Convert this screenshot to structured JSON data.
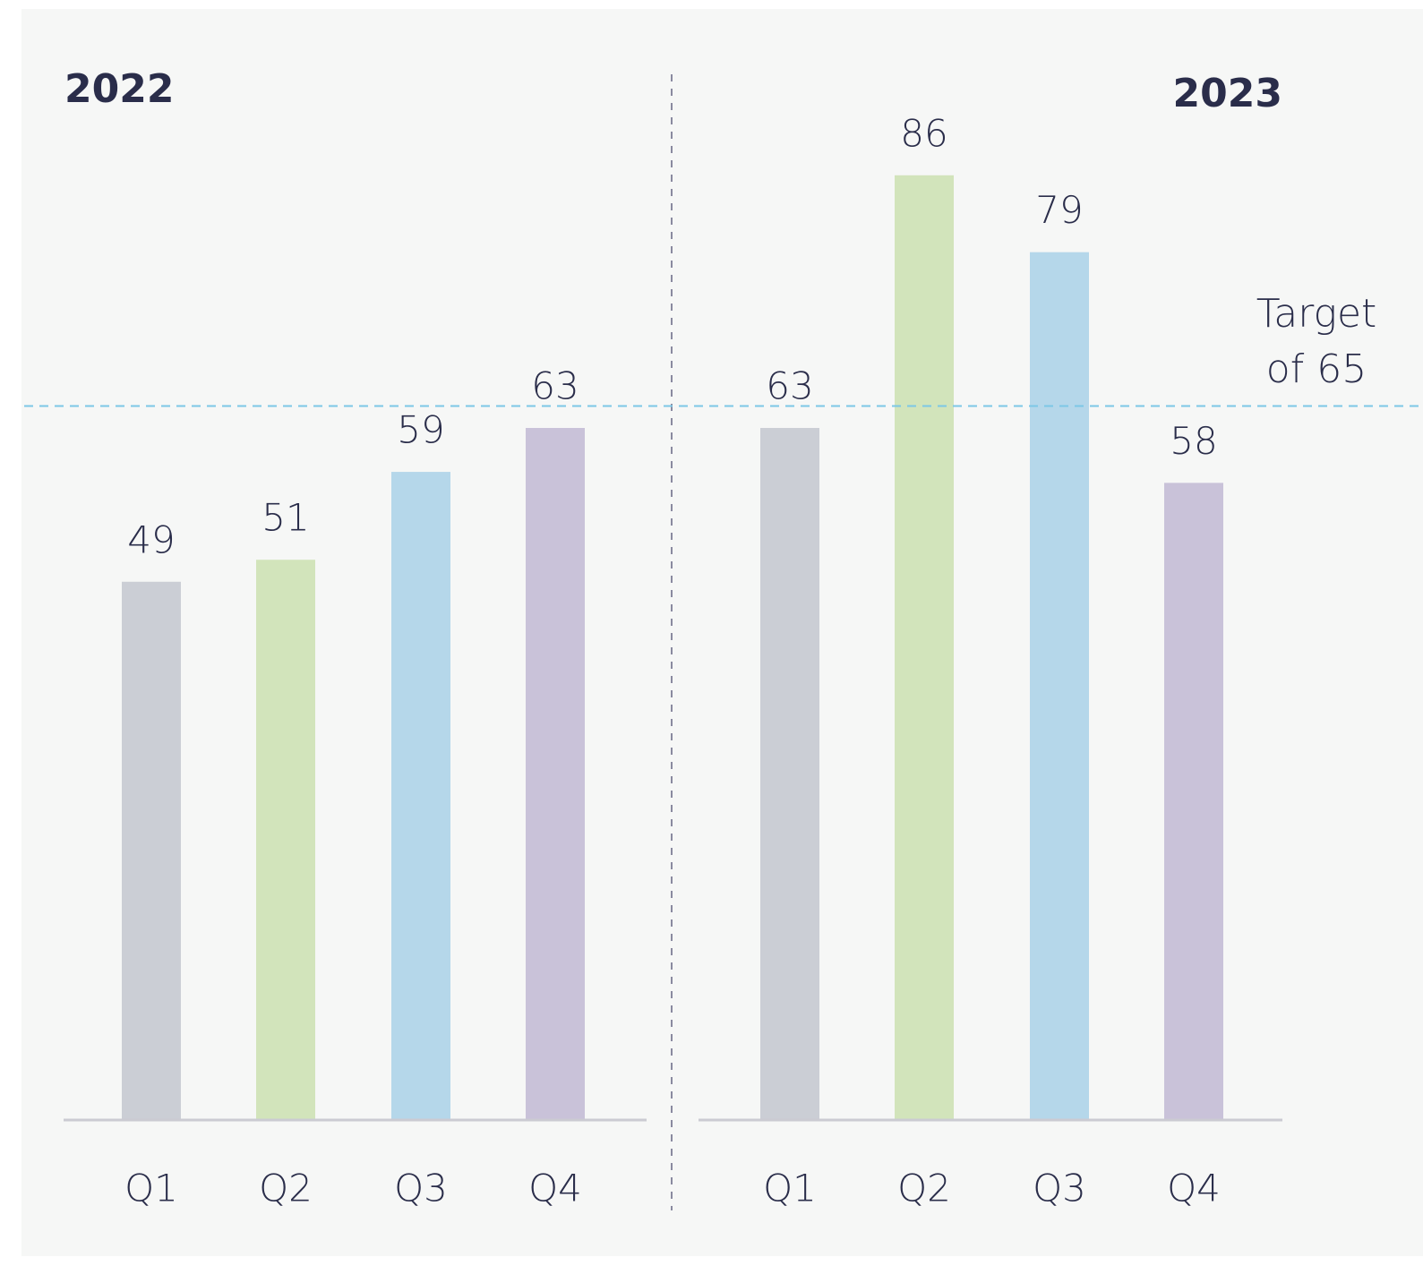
{
  "chart_data": [
    {
      "type": "bar",
      "title": "2022",
      "categories": [
        "Q1",
        "Q2",
        "Q3",
        "Q4"
      ],
      "values": [
        49,
        51,
        59,
        63
      ],
      "colors": [
        "#cbced5",
        "#d2e4bb",
        "#b5d7ea",
        "#c9c2d9"
      ],
      "ylim": [
        0,
        100
      ]
    },
    {
      "type": "bar",
      "title": "2023",
      "categories": [
        "Q1",
        "Q2",
        "Q3",
        "Q4"
      ],
      "values": [
        63,
        86,
        79,
        58
      ],
      "colors": [
        "#cbced5",
        "#d2e4bb",
        "#b5d7ea",
        "#c9c2d9"
      ],
      "ylim": [
        0,
        100
      ],
      "reference_line": {
        "value": 65,
        "label": "Target of 65",
        "color": "#7cc7e6"
      }
    }
  ]
}
